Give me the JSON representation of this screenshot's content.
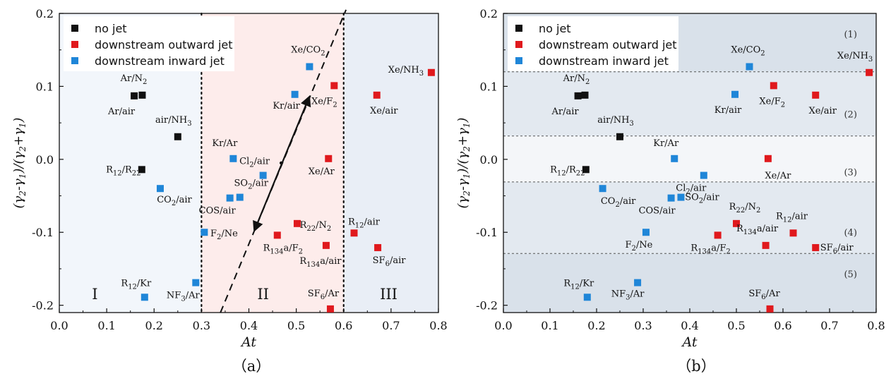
{
  "chart_data": [
    {
      "panel": "(a)",
      "type": "scatter",
      "xlabel": "At",
      "ylabel": "(γ2-γ1)/(γ2+γ1)",
      "xlim": [
        0.0,
        0.8
      ],
      "ylim": [
        -0.21,
        0.2
      ],
      "xticks": [
        "0.0",
        "0.1",
        "0.2",
        "0.3",
        "0.4",
        "0.5",
        "0.6",
        "0.7",
        "0.8"
      ],
      "yticks": [
        "0.2",
        "0.1",
        "0.0",
        "-0.1",
        "-0.2"
      ],
      "legend": [
        {
          "label": "no jet",
          "color": "#111111"
        },
        {
          "label": "downstream outward jet",
          "color": "#e0191d"
        },
        {
          "label": "downstream inward jet",
          "color": "#1f86d8"
        }
      ],
      "regions": [
        {
          "label": "I",
          "x_from": 0.0,
          "x_to": 0.3,
          "color": "#f2f6fb"
        },
        {
          "label": "II",
          "x_from": 0.3,
          "x_to": 0.6,
          "color": "#fdeceb"
        },
        {
          "label": "III",
          "x_from": 0.6,
          "x_to": 0.8,
          "color": "#e9eef6"
        }
      ],
      "series": [
        {
          "name": "no jet",
          "points": [
            {
              "label": "Ar/N2",
              "x": 0.175,
              "y": 0.088
            },
            {
              "label": "Ar/air",
              "x": 0.158,
              "y": 0.087
            },
            {
              "label": "air/NH3",
              "x": 0.25,
              "y": 0.031
            },
            {
              "label": "R12/R22",
              "x": 0.174,
              "y": -0.014
            }
          ]
        },
        {
          "name": "downstream outward jet",
          "points": [
            {
              "label": "Xe/F2",
              "x": 0.58,
              "y": 0.101
            },
            {
              "label": "Xe/air",
              "x": 0.67,
              "y": 0.088
            },
            {
              "label": "Xe/NH3",
              "x": 0.785,
              "y": 0.119
            },
            {
              "label": "Xe/Ar",
              "x": 0.568,
              "y": 0.001
            },
            {
              "label": "R22/N2",
              "x": 0.502,
              "y": -0.088
            },
            {
              "label": "R134a/F2",
              "x": 0.46,
              "y": -0.104
            },
            {
              "label": "R134a/air",
              "x": 0.563,
              "y": -0.118
            },
            {
              "label": "R12/air",
              "x": 0.622,
              "y": -0.101
            },
            {
              "label": "SF6/air",
              "x": 0.672,
              "y": -0.121
            },
            {
              "label": "SF6/Ar",
              "x": 0.572,
              "y": -0.205
            }
          ]
        },
        {
          "name": "downstream inward jet",
          "points": [
            {
              "label": "Xe/CO2",
              "x": 0.528,
              "y": 0.127
            },
            {
              "label": "Kr/air",
              "x": 0.497,
              "y": 0.089
            },
            {
              "label": "Kr/Ar",
              "x": 0.367,
              "y": 0.001
            },
            {
              "label": "Cl2/air",
              "x": 0.43,
              "y": -0.022
            },
            {
              "label": "SO2/air",
              "x": 0.381,
              "y": -0.052
            },
            {
              "label": "COS/air",
              "x": 0.36,
              "y": -0.053
            },
            {
              "label": "CO2/air",
              "x": 0.213,
              "y": -0.04
            },
            {
              "label": "F2/Ne",
              "x": 0.306,
              "y": -0.1
            },
            {
              "label": "NF3/Ar",
              "x": 0.288,
              "y": -0.169
            },
            {
              "label": "R12/Kr",
              "x": 0.18,
              "y": -0.189
            }
          ]
        }
      ]
    },
    {
      "panel": "(b)",
      "type": "scatter",
      "xlabel": "At",
      "ylabel": "(γ2-γ1)/(γ2+γ1)",
      "xlim": [
        0.0,
        0.8
      ],
      "ylim": [
        -0.21,
        0.2
      ],
      "xticks": [
        "0.0",
        "0.1",
        "0.2",
        "0.3",
        "0.4",
        "0.5",
        "0.6",
        "0.7",
        "0.8"
      ],
      "yticks": [
        "0.2",
        "0.1",
        "0.0",
        "-0.1",
        "-0.2"
      ],
      "legend": [
        {
          "label": "no jet",
          "color": "#111111"
        },
        {
          "label": "downstream outward jet",
          "color": "#e0191d"
        },
        {
          "label": "downstream inward jet",
          "color": "#1f86d8"
        }
      ],
      "bands": [
        {
          "label": "(1)",
          "y_from": 0.12,
          "y_to": 0.2,
          "color": "#d9e1ea"
        },
        {
          "label": "(2)",
          "y_from": 0.032,
          "y_to": 0.12,
          "color": "#e3e9f0"
        },
        {
          "label": "(3)",
          "y_from": -0.031,
          "y_to": 0.032,
          "color": "#f4f6f9"
        },
        {
          "label": "(4)",
          "y_from": -0.129,
          "y_to": -0.031,
          "color": "#e3e9f0"
        },
        {
          "label": "(5)",
          "y_from": -0.21,
          "y_to": -0.129,
          "color": "#d9e1ea"
        }
      ],
      "series": [
        {
          "name": "no jet",
          "points": [
            {
              "label": "Ar/N2",
              "x": 0.175,
              "y": 0.088
            },
            {
              "label": "Ar/air",
              "x": 0.16,
              "y": 0.087
            },
            {
              "label": "air/NH3",
              "x": 0.25,
              "y": 0.031
            },
            {
              "label": "R12/R22",
              "x": 0.177,
              "y": -0.014
            }
          ]
        },
        {
          "name": "downstream outward jet",
          "points": [
            {
              "label": "Xe/F2",
              "x": 0.58,
              "y": 0.101
            },
            {
              "label": "Xe/air",
              "x": 0.67,
              "y": 0.088
            },
            {
              "label": "Xe/NH3",
              "x": 0.785,
              "y": 0.119
            },
            {
              "label": "Xe/Ar",
              "x": 0.568,
              "y": 0.001
            },
            {
              "label": "R22/N2",
              "x": 0.5,
              "y": -0.088
            },
            {
              "label": "R134a/F2",
              "x": 0.46,
              "y": -0.104
            },
            {
              "label": "R134a/air",
              "x": 0.563,
              "y": -0.118
            },
            {
              "label": "R12/air",
              "x": 0.622,
              "y": -0.101
            },
            {
              "label": "SF6/air",
              "x": 0.67,
              "y": -0.121
            },
            {
              "label": "SF6/Ar",
              "x": 0.572,
              "y": -0.205
            }
          ]
        },
        {
          "name": "downstream inward jet",
          "points": [
            {
              "label": "Xe/CO2",
              "x": 0.528,
              "y": 0.127
            },
            {
              "label": "Kr/air",
              "x": 0.497,
              "y": 0.089
            },
            {
              "label": "Kr/Ar",
              "x": 0.367,
              "y": 0.001
            },
            {
              "label": "Cl2/air",
              "x": 0.43,
              "y": -0.022
            },
            {
              "label": "SO2/air",
              "x": 0.381,
              "y": -0.052
            },
            {
              "label": "COS/air",
              "x": 0.36,
              "y": -0.053
            },
            {
              "label": "CO2/air",
              "x": 0.213,
              "y": -0.04
            },
            {
              "label": "F2/Ne",
              "x": 0.306,
              "y": -0.1
            },
            {
              "label": "NF3/Ar",
              "x": 0.288,
              "y": -0.169
            },
            {
              "label": "R12/Kr",
              "x": 0.18,
              "y": -0.189
            }
          ]
        }
      ]
    }
  ],
  "captions": [
    "（a）",
    "（b）"
  ]
}
